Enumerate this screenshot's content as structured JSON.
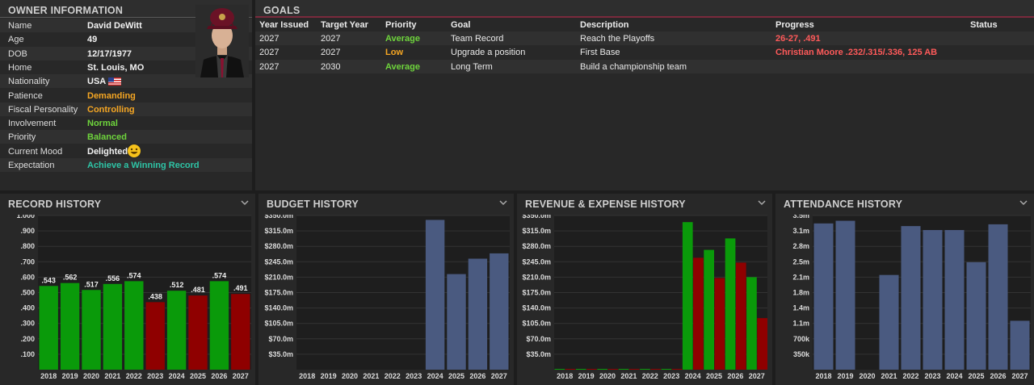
{
  "owner": {
    "title": "OWNER INFORMATION",
    "rows": [
      {
        "label": "Name",
        "value": "David DeWitt",
        "color": "#f2f2f2"
      },
      {
        "label": "Age",
        "value": "49",
        "color": "#f2f2f2"
      },
      {
        "label": "DOB",
        "value": "12/17/1977",
        "color": "#f2f2f2"
      },
      {
        "label": "Home",
        "value": "St. Louis, MO",
        "color": "#f2f2f2"
      },
      {
        "label": "Nationality",
        "value": "USA",
        "color": "#f2f2f2"
      },
      {
        "label": "Patience",
        "value": "Demanding",
        "color": "#f5a623"
      },
      {
        "label": "Fiscal Personality",
        "value": "Controlling",
        "color": "#f5a623"
      },
      {
        "label": "Involvement",
        "value": "Normal",
        "color": "#6ed43c"
      },
      {
        "label": "Priority",
        "value": "Balanced",
        "color": "#6ed43c"
      },
      {
        "label": "Current Mood",
        "value": "Delighted",
        "color": "#f2f2f2"
      },
      {
        "label": "Expectation",
        "value": "Achieve a Winning Record",
        "color": "#2ec4a6"
      }
    ]
  },
  "goals": {
    "title": "GOALS",
    "headers": [
      "Year Issued",
      "Target Year",
      "Priority",
      "Goal",
      "Description",
      "Progress",
      "Status"
    ],
    "rows": [
      {
        "year_issued": "2027",
        "target_year": "2027",
        "priority": "Average",
        "priority_color": "#6ed43c",
        "goal": "Team Record",
        "description": "Reach the Playoffs",
        "progress": "26-27, .491",
        "status": ""
      },
      {
        "year_issued": "2027",
        "target_year": "2027",
        "priority": "Low",
        "priority_color": "#f5a623",
        "goal": "Upgrade a position",
        "description": "First Base",
        "progress": "Christian Moore .232/.315/.336, 125 AB",
        "status": ""
      },
      {
        "year_issued": "2027",
        "target_year": "2030",
        "priority": "Average",
        "priority_color": "#6ed43c",
        "goal": "Long Term",
        "description": "Build a championship team",
        "progress": "",
        "status": ""
      }
    ]
  },
  "colors": {
    "green": "#0a9a0a",
    "red": "#8f0000",
    "blue": "#4a5a80",
    "progress": "#ff5a5a"
  },
  "chart_data": [
    {
      "type": "bar",
      "title": "RECORD HISTORY",
      "categories": [
        "2018",
        "2019",
        "2020",
        "2021",
        "2022",
        "2023",
        "2024",
        "2025",
        "2026",
        "2027"
      ],
      "values": [
        0.543,
        0.562,
        0.517,
        0.556,
        0.574,
        0.438,
        0.512,
        0.481,
        0.574,
        0.491
      ],
      "data_labels": [
        ".543",
        ".562",
        ".517",
        ".556",
        ".574",
        ".438",
        ".512",
        ".481",
        ".574",
        ".491"
      ],
      "colors": [
        "green",
        "green",
        "green",
        "green",
        "green",
        "red",
        "green",
        "red",
        "green",
        "red"
      ],
      "ylim": [
        0,
        1.0
      ],
      "yticks": [
        0.1,
        0.2,
        0.3,
        0.4,
        0.5,
        0.6,
        0.7,
        0.8,
        0.9,
        1.0
      ],
      "ytick_labels": [
        ".100",
        ".200",
        ".300",
        ".400",
        ".500",
        ".600",
        ".700",
        ".800",
        ".900",
        "1.000"
      ]
    },
    {
      "type": "bar",
      "title": "BUDGET HISTORY",
      "categories": [
        "2018",
        "2019",
        "2020",
        "2021",
        "2022",
        "2023",
        "2024",
        "2025",
        "2026",
        "2027"
      ],
      "values": [
        0,
        0,
        0,
        0,
        0,
        0,
        340,
        217,
        252,
        264
      ],
      "ylim": [
        0,
        350
      ],
      "yticks": [
        35,
        70,
        105,
        140,
        175,
        210,
        245,
        280,
        315,
        350
      ],
      "ytick_labels": [
        "$35.0m",
        "$70.0m",
        "$105.0m",
        "$140.0m",
        "$175.0m",
        "$210.0m",
        "$245.0m",
        "$280.0m",
        "$315.0m",
        "$350.0m"
      ]
    },
    {
      "type": "bar",
      "title": "REVENUE & EXPENSE HISTORY",
      "categories": [
        "2018",
        "2019",
        "2020",
        "2021",
        "2022",
        "2023",
        "2024",
        "2025",
        "2026",
        "2027"
      ],
      "series": [
        {
          "name": "Revenue",
          "values": [
            0,
            0,
            0,
            0,
            0,
            0,
            335,
            272,
            298,
            210
          ]
        },
        {
          "name": "Expense",
          "values": [
            0,
            0,
            0,
            0,
            0,
            0,
            254,
            208,
            243,
            117
          ]
        }
      ],
      "ylim": [
        0,
        350
      ],
      "yticks": [
        35,
        70,
        105,
        140,
        175,
        210,
        245,
        280,
        315,
        350
      ],
      "ytick_labels": [
        "$35.0m",
        "$70.0m",
        "$105.0m",
        "$140.0m",
        "$175.0m",
        "$210.0m",
        "$245.0m",
        "$280.0m",
        "$315.0m",
        "$350.0m"
      ]
    },
    {
      "type": "bar",
      "title": "ATTENDANCE HISTORY",
      "categories": [
        "2018",
        "2019",
        "2020",
        "2021",
        "2022",
        "2023",
        "2024",
        "2025",
        "2026",
        "2027"
      ],
      "values": [
        3.32,
        3.38,
        0,
        2.15,
        3.26,
        3.17,
        3.17,
        2.44,
        3.3,
        1.11
      ],
      "ylim": [
        0,
        3.5
      ],
      "yticks": [
        0.35,
        0.7,
        1.05,
        1.4,
        1.75,
        2.1,
        2.45,
        2.8,
        3.15,
        3.5
      ],
      "ytick_labels": [
        "350k",
        "700k",
        "1.1m",
        "1.4m",
        "1.8m",
        "2.1m",
        "2.5m",
        "2.8m",
        "3.1m",
        "3.5m"
      ]
    }
  ]
}
